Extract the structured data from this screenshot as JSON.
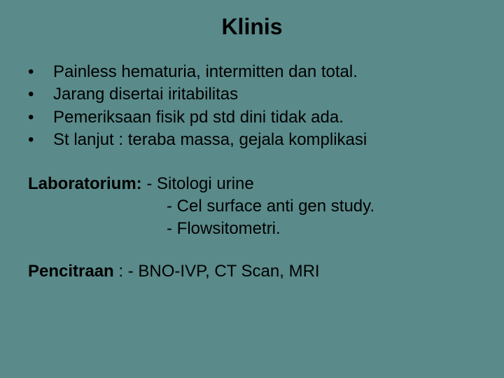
{
  "background_color": "#5a8a8a",
  "text_color": "#000000",
  "title": "Klinis",
  "title_fontsize": 32,
  "body_fontsize": 24,
  "bullets": {
    "b0": "Painless hematuria, intermitten dan total.",
    "b1": "Jarang disertai iritabilitas",
    "b2": "Pemeriksaan fisik pd std dini tidak ada.",
    "b3": "St lanjut : teraba massa, gejala komplikasi"
  },
  "lab": {
    "label": "Laboratorium: ",
    "item0": "- Sitologi urine",
    "item1": "- Cel surface anti gen study.",
    "item2": "- Flowsitometri."
  },
  "imaging": {
    "label": "Pencitraan",
    "sep": "   : ",
    "item0": "- BNO-IVP, CT Scan, MRI"
  }
}
